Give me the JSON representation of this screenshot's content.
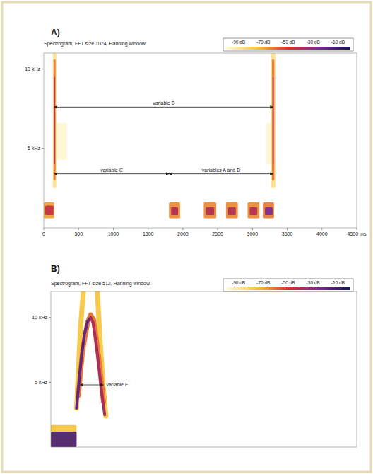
{
  "chart_data": [
    {
      "type": "spectrogram",
      "panel": "A)",
      "title": "Spectrogram, FFT size 1024, Hanning window",
      "xlim": [
        0,
        4500
      ],
      "ylim": [
        0,
        11
      ],
      "xticks": [
        0,
        500,
        1000,
        1500,
        2000,
        2500,
        3000,
        3500,
        4000,
        {
          "value": 4500,
          "label": "4500 ms"
        }
      ],
      "yticks": [
        {
          "value": 5,
          "label": "5 kHz"
        },
        {
          "value": 10,
          "label": "10 kHz"
        }
      ],
      "colorbar": {
        "ticks": [
          {
            "value": -90,
            "label": "-90 dB"
          },
          {
            "value": -70,
            "label": "-70 dB"
          },
          {
            "value": -50,
            "label": "-50 dB"
          },
          {
            "value": -30,
            "label": "-30 dB"
          },
          {
            "value": -10,
            "label": "-10 dB"
          }
        ],
        "colors": [
          "#fffbe0",
          "#f6c43a",
          "#d9302a",
          "#7b2a92",
          "#141452"
        ]
      },
      "cells": [
        {
          "t": [
            175,
            330
          ],
          "f": [
            4.3,
            6.6
          ],
          "db": -88
        },
        {
          "t": [
            3200,
            3270
          ],
          "f": [
            4,
            6.6
          ],
          "db": -88
        },
        {
          "t": [
            0,
            150
          ],
          "f": [
            0.6,
            1.6
          ],
          "db": -65
        },
        {
          "t": [
            20,
            140
          ],
          "f": [
            0.8,
            1.4
          ],
          "db": -45
        },
        {
          "t": [
            130,
            180
          ],
          "f": [
            2.5,
            11
          ],
          "db": -80
        },
        {
          "t": [
            140,
            170
          ],
          "f": [
            3,
            10.6
          ],
          "db": -60
        },
        {
          "t": [
            148,
            162
          ],
          "f": [
            4,
            9.5
          ],
          "db": -40
        },
        {
          "t": [
            3265,
            3330
          ],
          "f": [
            2.5,
            11
          ],
          "db": -80
        },
        {
          "t": [
            3280,
            3315
          ],
          "f": [
            3,
            10.6
          ],
          "db": -60
        },
        {
          "t": [
            3290,
            3305
          ],
          "f": [
            4,
            9.5
          ],
          "db": -40
        },
        {
          "t": [
            1800,
            1960
          ],
          "f": [
            0.6,
            1.6
          ],
          "db": -62
        },
        {
          "t": [
            1830,
            1930
          ],
          "f": [
            0.8,
            1.3
          ],
          "db": -42
        },
        {
          "t": [
            2300,
            2480
          ],
          "f": [
            0.6,
            1.6
          ],
          "db": -62
        },
        {
          "t": [
            2330,
            2450
          ],
          "f": [
            0.8,
            1.3
          ],
          "db": -42
        },
        {
          "t": [
            2620,
            2790
          ],
          "f": [
            0.6,
            1.6
          ],
          "db": -62
        },
        {
          "t": [
            2650,
            2760
          ],
          "f": [
            0.8,
            1.3
          ],
          "db": -42
        },
        {
          "t": [
            2930,
            3100
          ],
          "f": [
            0.6,
            1.6
          ],
          "db": -62
        },
        {
          "t": [
            2960,
            3070
          ],
          "f": [
            0.8,
            1.3
          ],
          "db": -42
        },
        {
          "t": [
            3150,
            3310
          ],
          "f": [
            0.6,
            1.6
          ],
          "db": -60
        },
        {
          "t": [
            3180,
            3290
          ],
          "f": [
            0.8,
            1.3
          ],
          "db": -30
        }
      ],
      "annotations": [
        {
          "text": "variable B",
          "x": [
            150,
            3300
          ],
          "y": 7.6
        },
        {
          "text": "variable C",
          "x": [
            150,
            1800
          ],
          "y": 3.4
        },
        {
          "text": "variables A and D",
          "x": [
            1800,
            3300
          ],
          "y": 3.4
        }
      ]
    },
    {
      "type": "spectrogram",
      "panel": "B)",
      "title": "Spectrogram, FFT size 512, Hanning window",
      "xlim": [
        0,
        500
      ],
      "ylim": [
        0,
        12
      ],
      "tick_labels": "y",
      "yticks": [
        {
          "value": 5,
          "label": "5 kHz"
        },
        {
          "value": 10,
          "label": "10 kHz"
        }
      ],
      "colorbar": {
        "ticks": [
          {
            "value": -90,
            "label": "-90 dB"
          },
          {
            "value": -70,
            "label": "-70 dB"
          },
          {
            "value": -50,
            "label": "-50 dB"
          },
          {
            "value": -30,
            "label": "-30 dB"
          },
          {
            "value": -10,
            "label": "-10 dB"
          }
        ],
        "colors": [
          "#fffbe0",
          "#f6c43a",
          "#d9302a",
          "#7b2a92",
          "#141452"
        ]
      },
      "cells": [
        {
          "t": [
            0,
            42
          ],
          "f": [
            0,
            1.7
          ],
          "db": -70
        },
        {
          "t": [
            0,
            42
          ],
          "f": [
            0,
            1.2
          ],
          "db": -20
        }
      ],
      "contours": [
        {
          "x": [
            42,
            45,
            49,
            53
          ],
          "y": [
            3,
            6,
            9.5,
            12
          ],
          "db": -72
        },
        {
          "x": [
            76,
            80,
            85,
            90
          ],
          "y": [
            12,
            8.5,
            5,
            2.4
          ],
          "db": -72
        },
        {
          "x": [
            45,
            52,
            60,
            65,
            70,
            78,
            86
          ],
          "y": [
            4,
            7.5,
            9.6,
            10.2,
            9.8,
            7,
            3.5
          ],
          "db": -60
        },
        {
          "x": [
            42,
            46,
            50,
            55,
            60,
            65
          ],
          "y": [
            3,
            5,
            7,
            8.7,
            9.7,
            10
          ],
          "db": -25
        },
        {
          "x": [
            65,
            69,
            74,
            79,
            83,
            88
          ],
          "y": [
            10,
            9.6,
            8,
            6,
            4.2,
            2.5
          ],
          "db": -40
        }
      ],
      "annotations": [
        {
          "text": "variable F",
          "x": [
            48,
            86
          ],
          "y": 4.8
        }
      ]
    }
  ]
}
